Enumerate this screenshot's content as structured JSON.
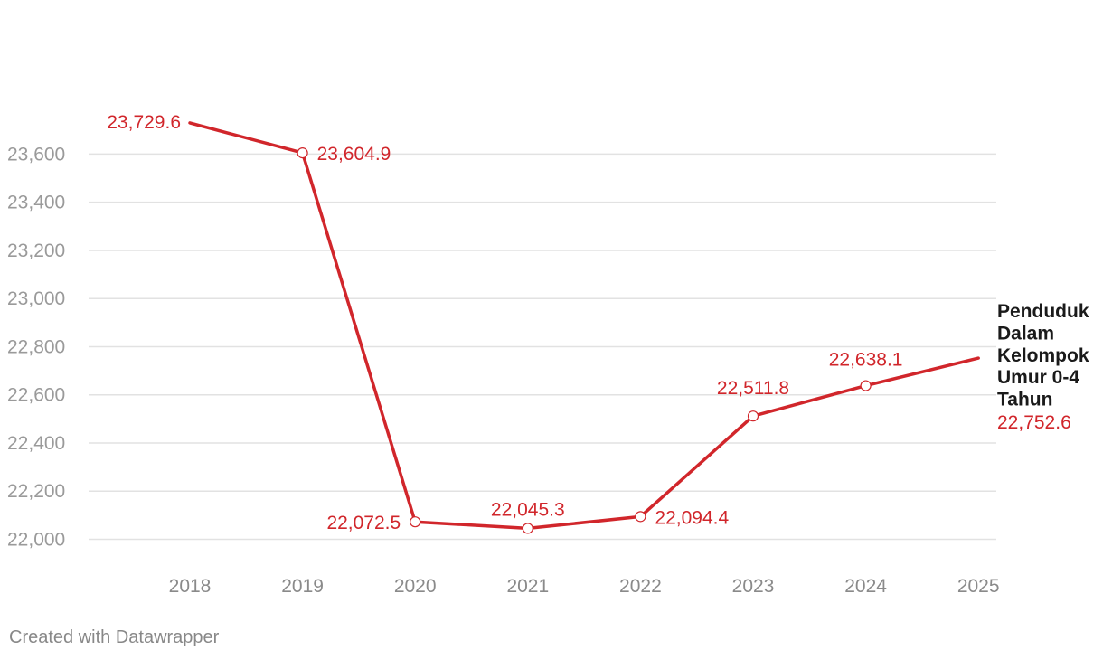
{
  "chart_data": {
    "type": "line",
    "x": [
      "2018",
      "2019",
      "2020",
      "2021",
      "2022",
      "2023",
      "2024",
      "2025"
    ],
    "series": [
      {
        "name": "Penduduk Dalam Kelompok Umur 0-4 Tahun",
        "name_lines": [
          "Penduduk",
          "Dalam",
          "Kelompok",
          "Umur 0-4",
          "Tahun"
        ],
        "values": [
          23729.6,
          23604.9,
          22072.5,
          22045.3,
          22094.4,
          22511.8,
          22638.1,
          22752.6
        ],
        "value_labels": [
          "23,729.6",
          "23,604.9",
          "22,072.5",
          "22,045.3",
          "22,094.4",
          "22,511.8",
          "22,638.1",
          "22,752.6"
        ],
        "color": "#d1262b"
      }
    ],
    "yticks": [
      22000,
      22200,
      22400,
      22600,
      22800,
      23000,
      23200,
      23400,
      23600
    ],
    "ytick_labels": [
      "22,000",
      "22,200",
      "22,400",
      "22,600",
      "22,800",
      "23,000",
      "23,200",
      "23,400",
      "23,600"
    ],
    "ylim": [
      22000,
      23729.6
    ],
    "grid": true,
    "legend": "end-of-line label",
    "title": "",
    "xlabel": "",
    "ylabel": ""
  },
  "footer": {
    "credit": "Created with Datawrapper"
  }
}
